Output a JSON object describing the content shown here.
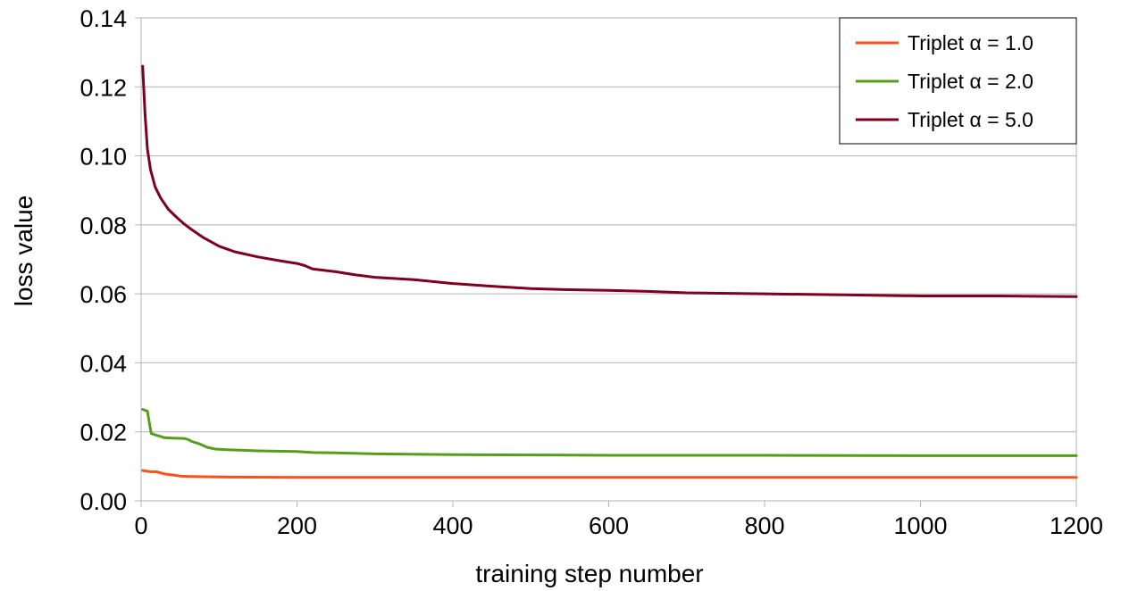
{
  "chart_data": {
    "type": "line",
    "title": "",
    "xlabel": "training step number",
    "ylabel": "loss value",
    "xlim": [
      0,
      1200
    ],
    "ylim": [
      0,
      0.14
    ],
    "x_ticks": [
      0,
      200,
      400,
      600,
      800,
      1000,
      1200
    ],
    "y_ticks": [
      0.0,
      0.02,
      0.04,
      0.06,
      0.08,
      0.1,
      0.12,
      0.14
    ],
    "x_tick_labels": [
      "0",
      "200",
      "400",
      "600",
      "800",
      "1000",
      "1200"
    ],
    "y_tick_labels": [
      "0.00",
      "0.02",
      "0.04",
      "0.06",
      "0.08",
      "0.10",
      "0.12",
      "0.14"
    ],
    "grid": "horizontal",
    "legend_position": "top-right",
    "series": [
      {
        "name": "Triplet  α = 1.0",
        "color": "#ff4f1a",
        "points": [
          [
            2,
            0.0088
          ],
          [
            10,
            0.0085
          ],
          [
            20,
            0.0084
          ],
          [
            30,
            0.0078
          ],
          [
            40,
            0.0075
          ],
          [
            50,
            0.0072
          ],
          [
            60,
            0.0071
          ],
          [
            80,
            0.007
          ],
          [
            100,
            0.0069
          ],
          [
            200,
            0.0068
          ],
          [
            400,
            0.0068
          ],
          [
            600,
            0.0068
          ],
          [
            800,
            0.0068
          ],
          [
            1000,
            0.0068
          ],
          [
            1200,
            0.0068
          ]
        ]
      },
      {
        "name": "Triplet  α = 2.0",
        "color": "#579d1c",
        "points": [
          [
            2,
            0.0265
          ],
          [
            8,
            0.026
          ],
          [
            13,
            0.0195
          ],
          [
            20,
            0.019
          ],
          [
            30,
            0.0183
          ],
          [
            40,
            0.0182
          ],
          [
            55,
            0.0181
          ],
          [
            60,
            0.0178
          ],
          [
            65,
            0.0172
          ],
          [
            75,
            0.0165
          ],
          [
            85,
            0.0155
          ],
          [
            95,
            0.015
          ],
          [
            110,
            0.0148
          ],
          [
            150,
            0.0145
          ],
          [
            200,
            0.0143
          ],
          [
            220,
            0.014
          ],
          [
            250,
            0.0139
          ],
          [
            300,
            0.0136
          ],
          [
            400,
            0.0134
          ],
          [
            500,
            0.0133
          ],
          [
            600,
            0.0132
          ],
          [
            800,
            0.0132
          ],
          [
            1000,
            0.0131
          ],
          [
            1200,
            0.0131
          ]
        ]
      },
      {
        "name": "Triplet  α = 5.0",
        "color": "#7e0021",
        "points": [
          [
            2,
            0.126
          ],
          [
            5,
            0.112
          ],
          [
            8,
            0.102
          ],
          [
            12,
            0.096
          ],
          [
            18,
            0.091
          ],
          [
            25,
            0.0878
          ],
          [
            35,
            0.0845
          ],
          [
            45,
            0.0823
          ],
          [
            55,
            0.0803
          ],
          [
            65,
            0.0786
          ],
          [
            80,
            0.0763
          ],
          [
            100,
            0.0738
          ],
          [
            120,
            0.0722
          ],
          [
            150,
            0.0707
          ],
          [
            180,
            0.0695
          ],
          [
            200,
            0.0688
          ],
          [
            210,
            0.0682
          ],
          [
            220,
            0.0672
          ],
          [
            250,
            0.0664
          ],
          [
            275,
            0.0655
          ],
          [
            300,
            0.0648
          ],
          [
            350,
            0.0641
          ],
          [
            400,
            0.063
          ],
          [
            450,
            0.0622
          ],
          [
            500,
            0.0615
          ],
          [
            550,
            0.0612
          ],
          [
            600,
            0.061
          ],
          [
            650,
            0.0607
          ],
          [
            700,
            0.0603
          ],
          [
            800,
            0.06
          ],
          [
            900,
            0.0597
          ],
          [
            1000,
            0.0594
          ],
          [
            1100,
            0.0594
          ],
          [
            1200,
            0.0592
          ]
        ]
      }
    ]
  }
}
